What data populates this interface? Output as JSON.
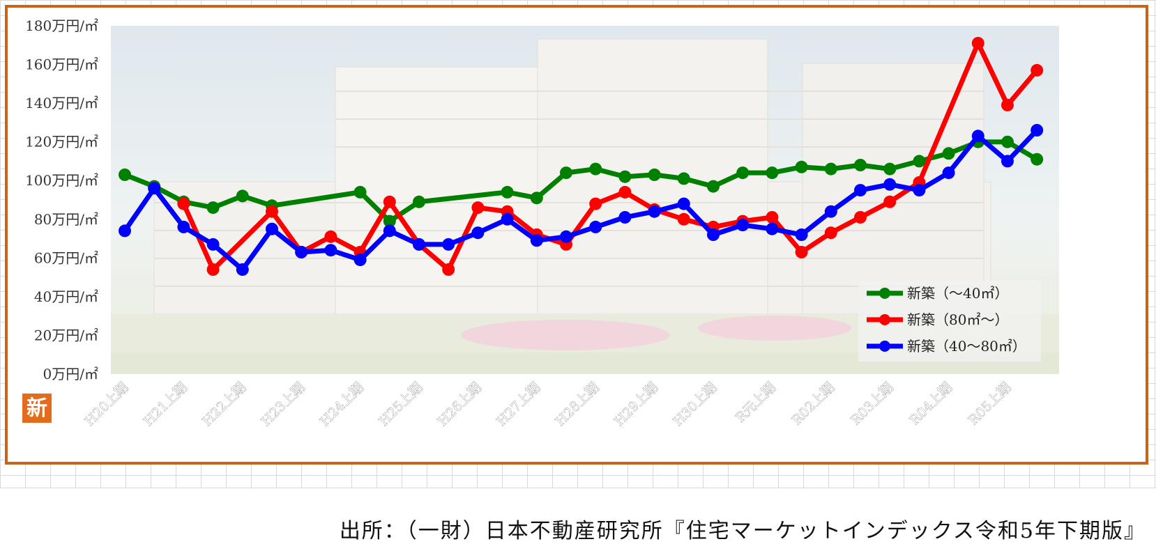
{
  "chart_data": {
    "type": "line",
    "title": "",
    "xlabel": "",
    "ylabel": "",
    "ylim": [
      0,
      180
    ],
    "y_tick_values": [
      0,
      20,
      40,
      60,
      80,
      100,
      120,
      140,
      160,
      180
    ],
    "y_tick_labels": [
      "0万円/㎡",
      "20万円/㎡",
      "40万円/㎡",
      "60万円/㎡",
      "80万円/㎡",
      "100万円/㎡",
      "120万円/㎡",
      "140万円/㎡",
      "160万円/㎡",
      "180万円/㎡"
    ],
    "x_tick_labels": [
      "H20上期",
      "H21上期",
      "H22上期",
      "H23上期",
      "H24上期",
      "H25上期",
      "H26上期",
      "H27上期",
      "H28上期",
      "H29上期",
      "H30上期",
      "R元上期",
      "R02上期",
      "R03上期",
      "R04上期",
      "R05上期"
    ],
    "periods_per_tick": 2,
    "period_count": 32,
    "grid": false,
    "legend_position": "bottom-right",
    "series": [
      {
        "name": "新築（～40㎡）",
        "color": "#008000",
        "points": [
          [
            0,
            103
          ],
          [
            1,
            97
          ],
          [
            2,
            89
          ],
          [
            3,
            86
          ],
          [
            4,
            92
          ],
          [
            5,
            87
          ],
          [
            8,
            94
          ],
          [
            9,
            79
          ],
          [
            10,
            89
          ],
          [
            13,
            94
          ],
          [
            14,
            91
          ],
          [
            15,
            104
          ],
          [
            16,
            106
          ],
          [
            17,
            102
          ],
          [
            18,
            103
          ],
          [
            19,
            101
          ],
          [
            20,
            97
          ],
          [
            21,
            104
          ],
          [
            22,
            104
          ],
          [
            23,
            107
          ],
          [
            24,
            106
          ],
          [
            25,
            108
          ],
          [
            26,
            106
          ],
          [
            27,
            110
          ],
          [
            28,
            114
          ],
          [
            29,
            120
          ],
          [
            30,
            120
          ],
          [
            31,
            111
          ]
        ]
      },
      {
        "name": "新築（80㎡～）",
        "color": "#ff0000",
        "points": [
          [
            2,
            88
          ],
          [
            3,
            54
          ],
          [
            5,
            84
          ],
          [
            6,
            63
          ],
          [
            7,
            71
          ],
          [
            8,
            63
          ],
          [
            9,
            89
          ],
          [
            10,
            67
          ],
          [
            11,
            54
          ],
          [
            12,
            86
          ],
          [
            13,
            84
          ],
          [
            14,
            72
          ],
          [
            15,
            67
          ],
          [
            16,
            88
          ],
          [
            17,
            94
          ],
          [
            18,
            85
          ],
          [
            19,
            80
          ],
          [
            20,
            76
          ],
          [
            21,
            79
          ],
          [
            22,
            81
          ],
          [
            23,
            63
          ],
          [
            24,
            73
          ],
          [
            25,
            81
          ],
          [
            26,
            89
          ],
          [
            27,
            99
          ],
          [
            29,
            171
          ],
          [
            30,
            139
          ],
          [
            31,
            157
          ]
        ]
      },
      {
        "name": "新築（40～80㎡）",
        "color": "#0000ff",
        "points": [
          [
            0,
            74
          ],
          [
            1,
            96
          ],
          [
            2,
            76
          ],
          [
            3,
            67
          ],
          [
            4,
            54
          ],
          [
            5,
            75
          ],
          [
            6,
            63
          ],
          [
            7,
            64
          ],
          [
            8,
            59
          ],
          [
            9,
            74
          ],
          [
            10,
            67
          ],
          [
            11,
            67
          ],
          [
            12,
            73
          ],
          [
            13,
            80
          ],
          [
            14,
            69
          ],
          [
            15,
            71
          ],
          [
            16,
            76
          ],
          [
            17,
            81
          ],
          [
            18,
            84
          ],
          [
            19,
            88
          ],
          [
            20,
            72
          ],
          [
            21,
            77
          ],
          [
            22,
            75
          ],
          [
            23,
            72
          ],
          [
            24,
            84
          ],
          [
            25,
            95
          ],
          [
            26,
            98
          ],
          [
            27,
            95
          ],
          [
            28,
            104
          ],
          [
            29,
            123
          ],
          [
            30,
            110
          ],
          [
            31,
            126
          ]
        ]
      }
    ]
  },
  "badge": {
    "label": "新"
  },
  "source_note": "出所：（一財）日本不動産研究所『住宅マーケットインデックス令和5年下期版』"
}
